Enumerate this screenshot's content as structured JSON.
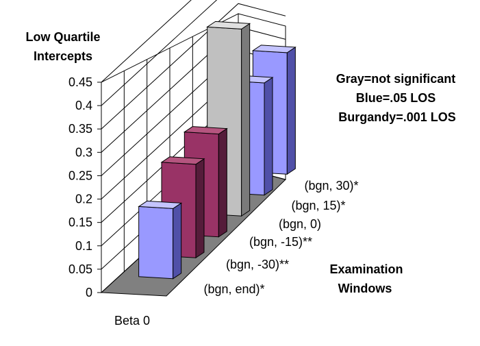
{
  "chart_data": {
    "type": "bar",
    "title": "",
    "ylabel_line1": "Low Quartile",
    "ylabel_line2": "Intercepts",
    "xlabel": "Beta 0",
    "depth_label_line1": "Examination",
    "depth_label_line2": "Windows",
    "ylim": [
      0,
      0.45
    ],
    "y_ticks": [
      "0",
      "0.05",
      "0.1",
      "0.15",
      "0.2",
      "0.25",
      "0.3",
      "0.35",
      "0.4",
      "0.45"
    ],
    "grid": true,
    "categories": [
      "(bgn, end)*",
      "(bgn, -30)**",
      "(bgn, -15)**",
      "(bgn, 0)",
      "(bgn, 15)*",
      "(bgn, 30)*"
    ],
    "values": [
      0.15,
      0.2,
      0.22,
      0.4,
      0.24,
      0.26
    ],
    "significance": [
      "blue",
      "burgundy",
      "burgundy",
      "gray",
      "blue",
      "blue"
    ],
    "legend_lines": [
      "Gray=not significant",
      "Blue=.05 LOS",
      "Burgandy=.001 LOS"
    ]
  },
  "colors": {
    "gray": {
      "front": "#c0c0c0",
      "side": "#7a7a7a",
      "top": "#e0e0e0"
    },
    "blue": {
      "front": "#9999ff",
      "side": "#5050a8",
      "top": "#c4c4ff"
    },
    "burgundy": {
      "front": "#993366",
      "side": "#551c3a",
      "top": "#b5557f"
    },
    "wall": "#ffffff",
    "floor": "#808080",
    "gridline": "#000000"
  }
}
